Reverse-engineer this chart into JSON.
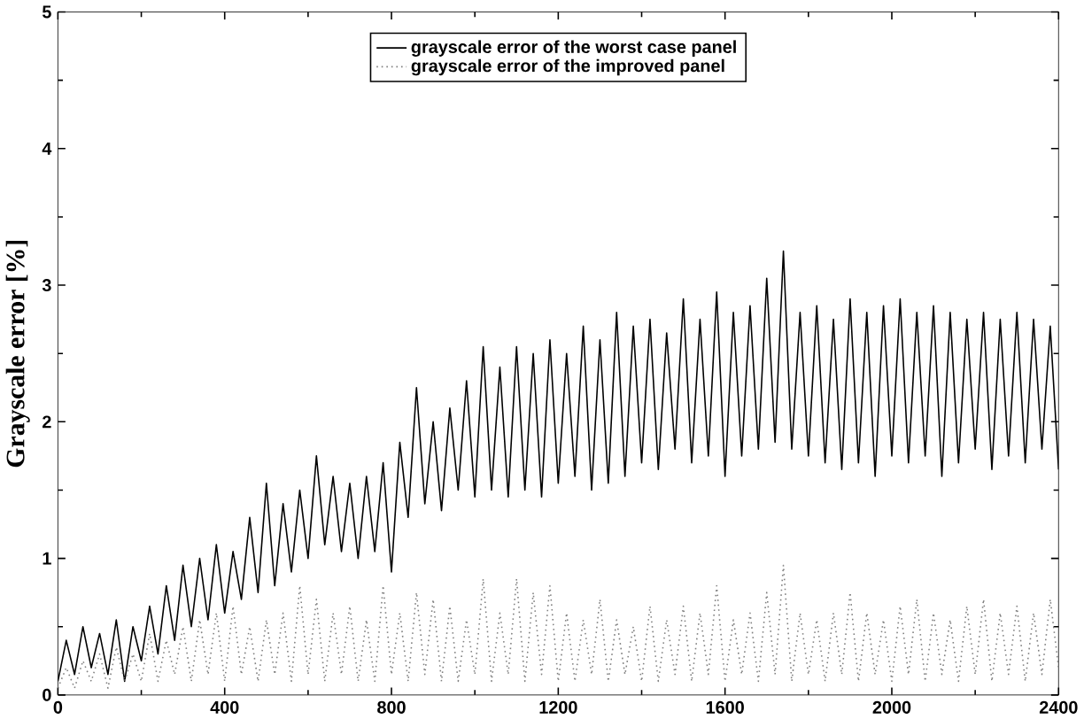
{
  "chart_data": {
    "type": "line",
    "ylabel": "Grayscale error [%]",
    "x": [
      0,
      20,
      40,
      60,
      80,
      100,
      120,
      140,
      160,
      180,
      200,
      220,
      240,
      260,
      280,
      300,
      320,
      340,
      360,
      380,
      400,
      420,
      440,
      460,
      480,
      500,
      520,
      540,
      560,
      580,
      600,
      620,
      640,
      660,
      680,
      700,
      720,
      740,
      760,
      780,
      800,
      820,
      840,
      860,
      880,
      900,
      920,
      940,
      960,
      980,
      1000,
      1020,
      1040,
      1060,
      1080,
      1100,
      1120,
      1140,
      1160,
      1180,
      1200,
      1220,
      1240,
      1260,
      1280,
      1300,
      1320,
      1340,
      1360,
      1380,
      1400,
      1420,
      1440,
      1460,
      1480,
      1500,
      1520,
      1540,
      1560,
      1580,
      1600,
      1620,
      1640,
      1660,
      1680,
      1700,
      1720,
      1740,
      1760,
      1780,
      1800,
      1820,
      1840,
      1860,
      1880,
      1900,
      1920,
      1940,
      1960,
      1980,
      2000,
      2020,
      2040,
      2060,
      2080,
      2100,
      2120,
      2140,
      2160,
      2180,
      2200,
      2220,
      2240,
      2260,
      2280,
      2300,
      2320,
      2340,
      2360,
      2380,
      2400
    ],
    "series": [
      {
        "name": "grayscale error of the worst case panel",
        "color": "#000000",
        "line_style": "solid",
        "values": [
          0.1,
          0.4,
          0.15,
          0.5,
          0.2,
          0.45,
          0.15,
          0.55,
          0.1,
          0.5,
          0.25,
          0.65,
          0.3,
          0.8,
          0.4,
          0.95,
          0.5,
          1.0,
          0.55,
          1.1,
          0.6,
          1.05,
          0.7,
          1.3,
          0.75,
          1.55,
          0.8,
          1.4,
          0.9,
          1.5,
          1.0,
          1.75,
          1.1,
          1.6,
          1.05,
          1.55,
          1.0,
          1.6,
          1.05,
          1.7,
          0.9,
          1.85,
          1.3,
          2.25,
          1.4,
          2.0,
          1.35,
          2.1,
          1.5,
          2.3,
          1.45,
          2.55,
          1.5,
          2.4,
          1.45,
          2.55,
          1.5,
          2.5,
          1.45,
          2.6,
          1.55,
          2.5,
          1.6,
          2.7,
          1.5,
          2.6,
          1.55,
          2.8,
          1.6,
          2.7,
          1.7,
          2.75,
          1.65,
          2.65,
          1.8,
          2.9,
          1.7,
          2.75,
          1.75,
          2.95,
          1.6,
          2.8,
          1.75,
          2.85,
          1.8,
          3.05,
          1.85,
          3.25,
          1.8,
          2.8,
          1.75,
          2.85,
          1.7,
          2.75,
          1.65,
          2.9,
          1.7,
          2.8,
          1.6,
          2.85,
          1.75,
          2.9,
          1.7,
          2.8,
          1.75,
          2.85,
          1.6,
          2.8,
          1.7,
          2.75,
          1.8,
          2.8,
          1.65,
          2.75,
          1.75,
          2.8,
          1.7,
          2.75,
          1.8,
          2.7,
          1.65
        ]
      },
      {
        "name": "grayscale error of the improved panel",
        "color": "#808080",
        "line_style": "dotted",
        "values": [
          0.05,
          0.2,
          0.05,
          0.25,
          0.1,
          0.3,
          0.05,
          0.35,
          0.1,
          0.3,
          0.1,
          0.45,
          0.1,
          0.4,
          0.15,
          0.5,
          0.1,
          0.55,
          0.15,
          0.6,
          0.1,
          0.65,
          0.15,
          0.5,
          0.1,
          0.55,
          0.15,
          0.6,
          0.1,
          0.8,
          0.15,
          0.7,
          0.1,
          0.6,
          0.15,
          0.65,
          0.1,
          0.55,
          0.1,
          0.8,
          0.15,
          0.6,
          0.1,
          0.75,
          0.15,
          0.7,
          0.1,
          0.65,
          0.1,
          0.55,
          0.15,
          0.85,
          0.1,
          0.6,
          0.15,
          0.85,
          0.1,
          0.75,
          0.15,
          0.8,
          0.1,
          0.6,
          0.1,
          0.55,
          0.15,
          0.7,
          0.1,
          0.55,
          0.15,
          0.5,
          0.1,
          0.65,
          0.1,
          0.55,
          0.15,
          0.65,
          0.1,
          0.6,
          0.15,
          0.8,
          0.1,
          0.55,
          0.15,
          0.6,
          0.1,
          0.75,
          0.15,
          0.95,
          0.1,
          0.6,
          0.15,
          0.55,
          0.1,
          0.6,
          0.15,
          0.75,
          0.1,
          0.6,
          0.15,
          0.55,
          0.1,
          0.65,
          0.15,
          0.7,
          0.1,
          0.6,
          0.15,
          0.55,
          0.1,
          0.65,
          0.15,
          0.7,
          0.1,
          0.6,
          0.15,
          0.65,
          0.1,
          0.6,
          0.15,
          0.7,
          0.2
        ]
      }
    ],
    "xlim": [
      0,
      2400
    ],
    "ylim": [
      0,
      5
    ],
    "xticks": [
      0,
      400,
      800,
      1200,
      1600,
      2000,
      2400
    ],
    "yticks": [
      0,
      1,
      2,
      3,
      4,
      5
    ],
    "grid": false,
    "legend": "top",
    "marker": "none"
  }
}
